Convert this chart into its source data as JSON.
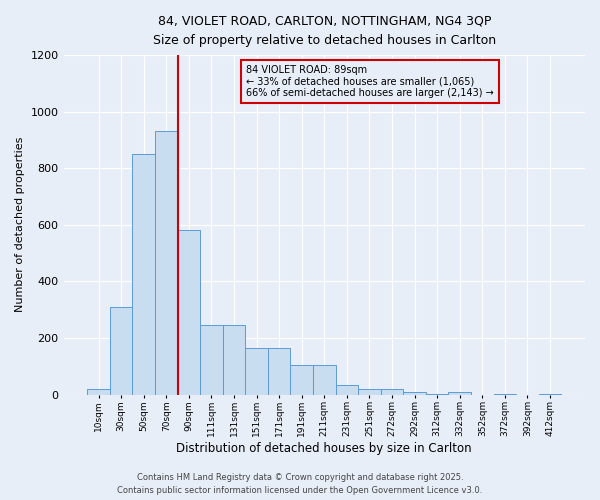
{
  "title1": "84, VIOLET ROAD, CARLTON, NOTTINGHAM, NG4 3QP",
  "title2": "Size of property relative to detached houses in Carlton",
  "xlabel": "Distribution of detached houses by size in Carlton",
  "ylabel": "Number of detached properties",
  "bin_labels": [
    "10sqm",
    "30sqm",
    "50sqm",
    "70sqm",
    "90sqm",
    "111sqm",
    "131sqm",
    "151sqm",
    "171sqm",
    "191sqm",
    "211sqm",
    "231sqm",
    "251sqm",
    "272sqm",
    "292sqm",
    "312sqm",
    "332sqm",
    "352sqm",
    "372sqm",
    "392sqm",
    "412sqm"
  ],
  "bar_values": [
    20,
    310,
    850,
    930,
    580,
    245,
    245,
    165,
    165,
    105,
    105,
    35,
    20,
    18,
    10,
    3,
    8,
    0,
    3,
    0,
    3
  ],
  "bar_color": "#c9ddf0",
  "bar_edge_color": "#5b9bd5",
  "vline_color": "#cc0000",
  "ylim": [
    0,
    1200
  ],
  "yticks": [
    0,
    200,
    400,
    600,
    800,
    1000,
    1200
  ],
  "annotation_title": "84 VIOLET ROAD: 89sqm",
  "annotation_line1": "← 33% of detached houses are smaller (1,065)",
  "annotation_line2": "66% of semi-detached houses are larger (2,143) →",
  "annotation_box_color": "#cc0000",
  "footer1": "Contains HM Land Registry data © Crown copyright and database right 2025.",
  "footer2": "Contains public sector information licensed under the Open Government Licence v3.0.",
  "background_color": "#e8eef8",
  "grid_color": "#ffffff"
}
